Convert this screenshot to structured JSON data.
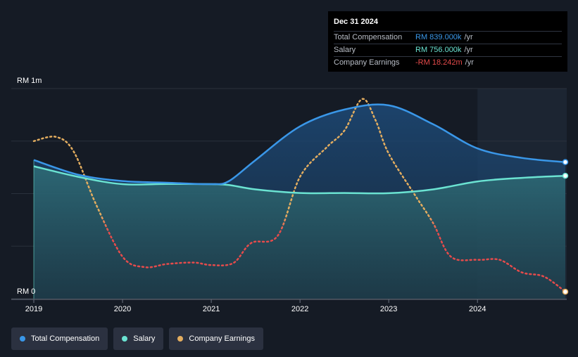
{
  "chart_data": {
    "type": "area",
    "y_axis": {
      "ticks": [
        "RM 0",
        "RM 1m"
      ],
      "ylim": [
        0,
        1000
      ]
    },
    "x_axis": {
      "ticks": [
        "2019",
        "2020",
        "2021",
        "2022",
        "2023",
        "2024"
      ],
      "xlim": [
        2019.0,
        2024.99
      ]
    },
    "series": [
      {
        "name": "Total Compensation",
        "color": "#3a97e8",
        "x": [
          2019.0,
          2019.5,
          2020.0,
          2020.5,
          2021.0,
          2021.2,
          2021.5,
          2022.0,
          2022.5,
          2023.0,
          2023.5,
          2024.0,
          2024.5,
          2024.99
        ],
        "y": [
          660,
          590,
          560,
          552,
          545,
          560,
          660,
          820,
          900,
          920,
          830,
          715,
          670,
          650
        ]
      },
      {
        "name": "Salary",
        "color": "#6be3d2",
        "x": [
          2019.0,
          2019.5,
          2020.0,
          2020.5,
          2021.0,
          2021.2,
          2021.5,
          2022.0,
          2022.5,
          2023.0,
          2023.5,
          2024.0,
          2024.5,
          2024.99
        ],
        "y": [
          630,
          580,
          545,
          546,
          545,
          541,
          520,
          503,
          503,
          502,
          520,
          558,
          575,
          585
        ]
      },
      {
        "name": "Company Earnings",
        "color": "#e3ad5f",
        "x": [
          2019.0,
          2019.25,
          2019.45,
          2019.7,
          2020.0,
          2020.25,
          2020.5,
          2020.8,
          2021.0,
          2021.25,
          2021.45,
          2021.75,
          2022.0,
          2022.3,
          2022.5,
          2022.7,
          2022.85,
          2023.0,
          2023.3,
          2023.5,
          2023.7,
          2024.0,
          2024.25,
          2024.5,
          2024.75,
          2024.99
        ],
        "y": [
          750,
          770,
          700,
          450,
          200,
          150,
          165,
          172,
          160,
          170,
          265,
          300,
          580,
          720,
          800,
          950,
          850,
          690,
          490,
          360,
          200,
          185,
          185,
          125,
          105,
          33
        ]
      }
    ],
    "forecast_region_start": 2024.0,
    "tooltip": {
      "date": "Dec 31 2024",
      "rows": [
        {
          "label": "Total Compensation",
          "value": "RM 839.000k",
          "unit": "/yr",
          "color": "#3a97e8"
        },
        {
          "label": "Salary",
          "value": "RM 756.000k",
          "unit": "/yr",
          "color": "#6be3d2"
        },
        {
          "label": "Company Earnings",
          "value": "-RM 18.242m",
          "unit": "/yr",
          "color": "#e64b4b"
        }
      ]
    }
  },
  "legend": [
    {
      "label": "Total Compensation",
      "color": "#3a97e8"
    },
    {
      "label": "Salary",
      "color": "#6be3d2"
    },
    {
      "label": "Company Earnings",
      "color": "#e3ad5f"
    }
  ]
}
